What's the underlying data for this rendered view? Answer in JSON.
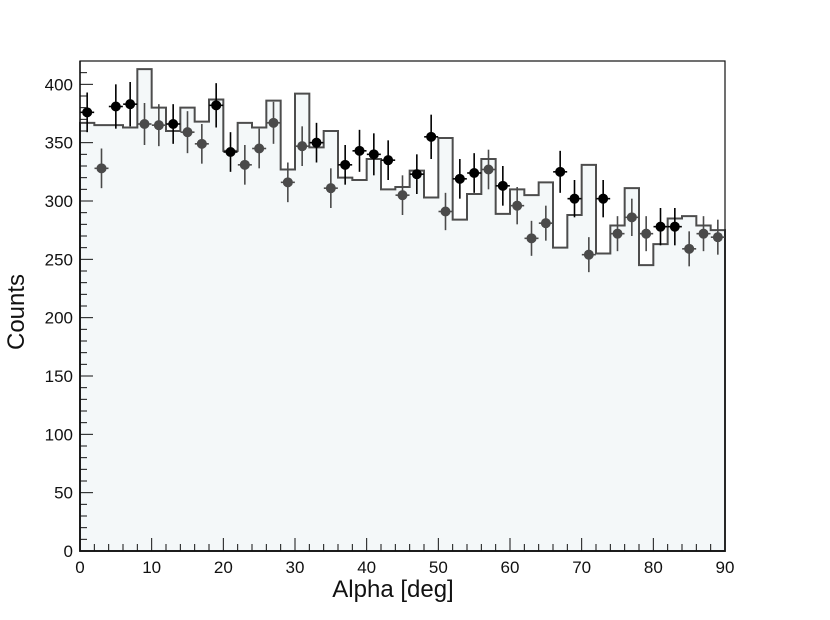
{
  "chart_data": {
    "type": "scatter",
    "title": "",
    "xlabel": "Alpha [deg]",
    "ylabel": "Counts",
    "xlim": [
      0,
      90
    ],
    "ylim": [
      0,
      420
    ],
    "grid": false,
    "legend": "none",
    "x_ticks": [
      0,
      10,
      20,
      30,
      40,
      50,
      60,
      70,
      80,
      90
    ],
    "y_ticks": [
      0,
      50,
      100,
      150,
      200,
      250,
      300,
      350,
      400
    ],
    "colors": {
      "histogram_fill": "#f4f8f9",
      "histogram_line": "#4d4d4d",
      "series_dark": "#000000",
      "series_grey": "#4a4a4a",
      "axis": "#111111"
    },
    "histogram": {
      "bin_width": 2,
      "x_start": 0,
      "values": [
        367,
        365,
        365,
        363,
        413,
        380,
        360,
        380,
        368,
        387,
        343,
        367,
        363,
        386,
        327,
        392,
        346,
        360,
        320,
        318,
        336,
        310,
        312,
        326,
        303,
        354,
        284,
        306,
        336,
        289,
        310,
        305,
        316,
        260,
        288,
        331,
        255,
        279,
        311,
        245,
        263,
        285,
        287,
        279,
        275
      ]
    },
    "series": [
      {
        "x": [
          1,
          5,
          7,
          13,
          19,
          21,
          33,
          37,
          39,
          41,
          43,
          47,
          49,
          53,
          55,
          59,
          67,
          69,
          73,
          81,
          83
        ],
        "y": [
          376,
          381,
          383,
          366,
          382,
          342,
          350,
          331,
          343,
          340,
          335,
          323,
          355,
          319,
          324,
          313,
          325,
          302,
          302,
          278,
          278
        ],
        "errors": [
          17,
          19,
          19,
          17,
          19,
          17,
          17,
          17,
          18,
          18,
          17,
          17,
          19,
          17,
          17,
          17,
          18,
          16,
          16,
          16,
          16
        ]
      },
      {
        "x": [
          3,
          9,
          11,
          15,
          17,
          23,
          25,
          27,
          29,
          31,
          35,
          45,
          51,
          57,
          61,
          63,
          65,
          71,
          75,
          77,
          79,
          85,
          87,
          89
        ],
        "y": [
          328,
          366,
          365,
          359,
          349,
          331,
          345,
          367,
          316,
          347,
          311,
          305,
          291,
          327,
          296,
          268,
          281,
          254,
          272,
          286,
          272,
          259,
          272,
          269
        ],
        "errors": [
          17,
          18,
          18,
          18,
          17,
          17,
          17,
          18,
          17,
          17,
          17,
          17,
          16,
          17,
          16,
          15,
          15,
          15,
          15,
          16,
          15,
          15,
          15,
          15
        ]
      }
    ]
  }
}
